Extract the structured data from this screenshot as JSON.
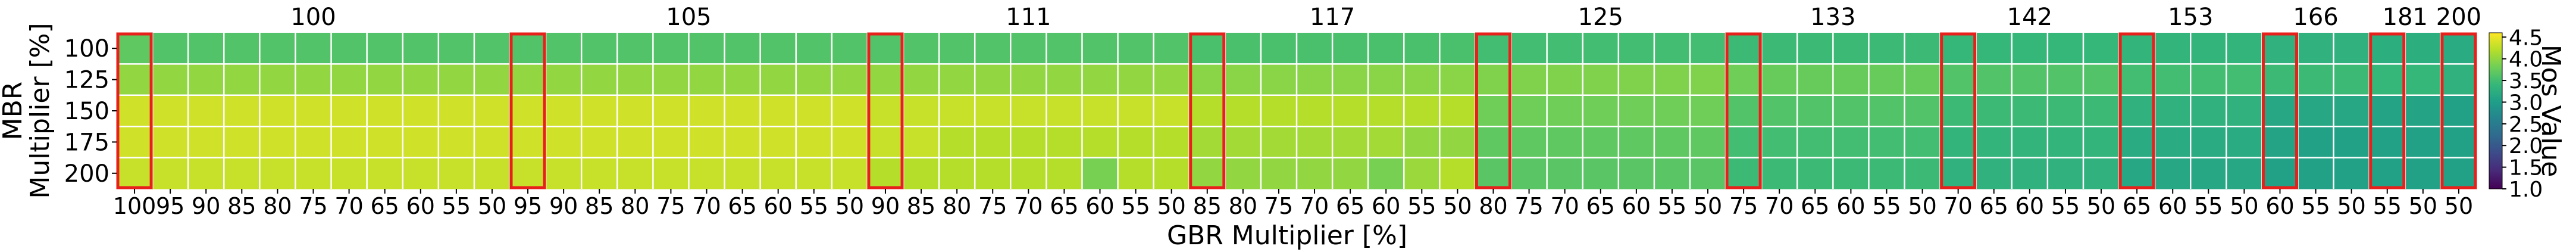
{
  "chart_data": {
    "type": "heatmap",
    "title": "",
    "xlabel": "GBR Multiplier [%]",
    "ylabel": "MBR\nMultiplier [%]",
    "colorbar_label": "Mos Value",
    "colorbar_ticks": [
      "4.5",
      "4.0",
      "3.5",
      "3.0",
      "2.5",
      "2.0",
      "1.5",
      "1.0"
    ],
    "colorbar_range": [
      1.0,
      4.6
    ],
    "colormap": "viridis",
    "rows": [
      "100",
      "125",
      "150",
      "175",
      "200"
    ],
    "columns": [
      "100",
      "95",
      "90",
      "85",
      "80",
      "75",
      "70",
      "65",
      "60",
      "55",
      "50",
      "95",
      "90",
      "85",
      "80",
      "75",
      "70",
      "65",
      "60",
      "55",
      "50",
      "90",
      "85",
      "80",
      "75",
      "70",
      "65",
      "60",
      "55",
      "50",
      "85",
      "80",
      "75",
      "70",
      "65",
      "60",
      "55",
      "50",
      "80",
      "75",
      "70",
      "65",
      "60",
      "55",
      "50",
      "75",
      "70",
      "65",
      "60",
      "55",
      "50",
      "70",
      "65",
      "60",
      "55",
      "50",
      "65",
      "60",
      "55",
      "50",
      "60",
      "55",
      "50",
      "55",
      "50",
      "50"
    ],
    "groups": [
      {
        "label": "100",
        "start": 0,
        "count": 11
      },
      {
        "label": "105",
        "start": 11,
        "count": 10
      },
      {
        "label": "111",
        "start": 21,
        "count": 9
      },
      {
        "label": "117",
        "start": 30,
        "count": 8
      },
      {
        "label": "125",
        "start": 38,
        "count": 7
      },
      {
        "label": "133",
        "start": 45,
        "count": 6
      },
      {
        "label": "142",
        "start": 51,
        "count": 5
      },
      {
        "label": "153",
        "start": 56,
        "count": 4
      },
      {
        "label": "166",
        "start": 60,
        "count": 3
      },
      {
        "label": "181",
        "start": 63,
        "count": 2
      },
      {
        "label": "200",
        "start": 65,
        "count": 1
      }
    ],
    "highlighted_columns": [
      0,
      11,
      21,
      30,
      38,
      45,
      51,
      56,
      60,
      63,
      65
    ],
    "highlight_color": "#e8201c",
    "values": [
      [
        3.7,
        3.6,
        3.6,
        3.6,
        3.6,
        3.6,
        3.6,
        3.6,
        3.6,
        3.6,
        3.6,
        3.6,
        3.6,
        3.6,
        3.6,
        3.6,
        3.6,
        3.6,
        3.6,
        3.6,
        3.6,
        3.6,
        3.6,
        3.6,
        3.6,
        3.6,
        3.6,
        3.6,
        3.6,
        3.6,
        3.55,
        3.55,
        3.55,
        3.55,
        3.55,
        3.55,
        3.55,
        3.55,
        3.5,
        3.5,
        3.5,
        3.5,
        3.5,
        3.5,
        3.5,
        3.45,
        3.45,
        3.45,
        3.45,
        3.45,
        3.45,
        3.4,
        3.4,
        3.4,
        3.4,
        3.4,
        3.35,
        3.35,
        3.35,
        3.35,
        3.3,
        3.3,
        3.3,
        3.25,
        3.25,
        3.2
      ],
      [
        4.0,
        4.0,
        4.0,
        4.0,
        4.0,
        4.0,
        4.0,
        4.0,
        4.0,
        4.0,
        4.0,
        4.0,
        4.0,
        4.0,
        4.0,
        4.0,
        4.0,
        4.0,
        4.0,
        4.0,
        4.0,
        4.0,
        4.0,
        4.0,
        4.0,
        4.0,
        4.0,
        4.0,
        4.0,
        4.0,
        3.95,
        3.95,
        3.95,
        3.95,
        3.95,
        3.95,
        3.95,
        3.95,
        3.9,
        3.9,
        3.9,
        3.9,
        3.9,
        3.9,
        3.9,
        3.8,
        3.75,
        3.75,
        3.75,
        3.75,
        3.75,
        3.6,
        3.6,
        3.6,
        3.6,
        3.6,
        3.5,
        3.5,
        3.5,
        3.5,
        3.45,
        3.45,
        3.45,
        3.4,
        3.4,
        3.3
      ],
      [
        4.35,
        4.35,
        4.35,
        4.35,
        4.35,
        4.35,
        4.35,
        4.35,
        4.35,
        4.35,
        4.35,
        4.35,
        4.35,
        4.35,
        4.35,
        4.35,
        4.35,
        4.35,
        4.35,
        4.35,
        4.35,
        4.3,
        4.3,
        4.3,
        4.3,
        4.3,
        4.3,
        4.3,
        4.3,
        4.3,
        4.2,
        4.2,
        4.2,
        4.2,
        4.2,
        4.2,
        4.2,
        4.2,
        3.8,
        3.8,
        3.8,
        3.8,
        3.8,
        3.8,
        3.8,
        3.6,
        3.6,
        3.6,
        3.6,
        3.6,
        3.6,
        3.45,
        3.45,
        3.45,
        3.45,
        3.45,
        3.3,
        3.3,
        3.3,
        3.3,
        3.15,
        3.15,
        3.15,
        3.1,
        3.1,
        3.05
      ],
      [
        4.35,
        4.35,
        4.35,
        4.35,
        4.35,
        4.35,
        4.35,
        4.35,
        4.35,
        4.35,
        4.35,
        4.35,
        4.35,
        4.35,
        4.35,
        4.35,
        4.35,
        4.35,
        4.35,
        4.35,
        4.35,
        4.3,
        4.3,
        4.2,
        4.2,
        4.2,
        4.2,
        4.2,
        4.2,
        4.2,
        4.1,
        4.1,
        4.1,
        4.1,
        4.1,
        4.1,
        4.0,
        4.0,
        3.7,
        3.7,
        3.7,
        3.7,
        3.7,
        3.7,
        3.7,
        3.5,
        3.5,
        3.5,
        3.5,
        3.5,
        3.5,
        3.35,
        3.35,
        3.35,
        3.35,
        3.35,
        3.2,
        3.2,
        3.2,
        3.2,
        3.1,
        3.05,
        3.05,
        3.05,
        3.05,
        3.05
      ],
      [
        4.3,
        4.3,
        4.3,
        4.3,
        4.3,
        4.3,
        4.3,
        4.3,
        4.3,
        4.3,
        4.3,
        4.3,
        4.3,
        4.3,
        4.3,
        4.3,
        4.3,
        4.3,
        4.3,
        4.3,
        4.3,
        4.2,
        4.2,
        4.2,
        4.2,
        4.2,
        4.2,
        3.85,
        4.2,
        4.2,
        4.0,
        4.0,
        4.0,
        4.0,
        4.0,
        3.85,
        4.05,
        4.2,
        3.65,
        3.65,
        3.65,
        3.65,
        3.65,
        3.65,
        3.65,
        3.45,
        3.45,
        3.45,
        3.45,
        3.45,
        3.45,
        3.3,
        3.3,
        3.3,
        3.3,
        3.3,
        3.15,
        3.15,
        3.15,
        3.15,
        3.05,
        3.05,
        3.05,
        3.05,
        3.05,
        3.05
      ]
    ]
  }
}
